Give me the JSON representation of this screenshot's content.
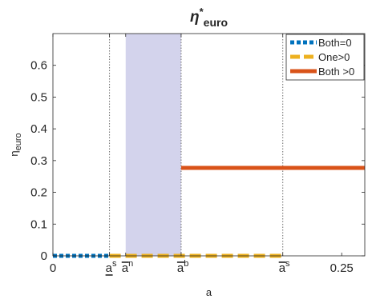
{
  "chart_data": {
    "type": "line",
    "title": {
      "base": "η",
      "sup": "*",
      "sub": "euro"
    },
    "xlabel": "a",
    "ylabel": {
      "base": "η",
      "sub": "euro"
    },
    "xlim": [
      0,
      0.27
    ],
    "ylim": [
      0,
      0.7
    ],
    "yticks": [
      {
        "value": 0,
        "label": "0"
      },
      {
        "value": 0.1,
        "label": "0.1"
      },
      {
        "value": 0.2,
        "label": "0.2"
      },
      {
        "value": 0.3,
        "label": "0.3"
      },
      {
        "value": 0.4,
        "label": "0.4"
      },
      {
        "value": 0.5,
        "label": "0.5"
      },
      {
        "value": 0.6,
        "label": "0.6"
      }
    ],
    "xticks": [
      {
        "value": 0,
        "main": "0",
        "sup": "",
        "bar": "none"
      },
      {
        "value": 0.049,
        "main": "a",
        "sup": "s",
        "bar": "under"
      },
      {
        "value": 0.063,
        "main": "a",
        "sup": "n",
        "bar": "over"
      },
      {
        "value": 0.111,
        "main": "a",
        "sup": "b",
        "bar": "over"
      },
      {
        "value": 0.199,
        "main": "a",
        "sup": "s",
        "bar": "over"
      },
      {
        "value": 0.25,
        "main": "0.25",
        "sup": "",
        "bar": "none"
      }
    ],
    "vlines": [
      0.049,
      0.111,
      0.199
    ],
    "shaded_region": {
      "x": [
        0.063,
        0.111
      ],
      "color": "#d3d3ec"
    },
    "grid": false,
    "legend_position": "top-right",
    "series": [
      {
        "name": "Both=0",
        "color": "#0072bd",
        "style": "dotted",
        "points": [
          [
            0,
            0
          ],
          [
            0.049,
            0
          ]
        ]
      },
      {
        "name": "One>0",
        "color": "#edb120",
        "style": "dashed",
        "points": [
          [
            0.049,
            0
          ],
          [
            0.199,
            0
          ]
        ]
      },
      {
        "name": "Both >0",
        "color": "#d95319",
        "style": "solid",
        "points": [
          [
            0.111,
            0.277
          ],
          [
            0.27,
            0.277
          ]
        ]
      }
    ]
  }
}
